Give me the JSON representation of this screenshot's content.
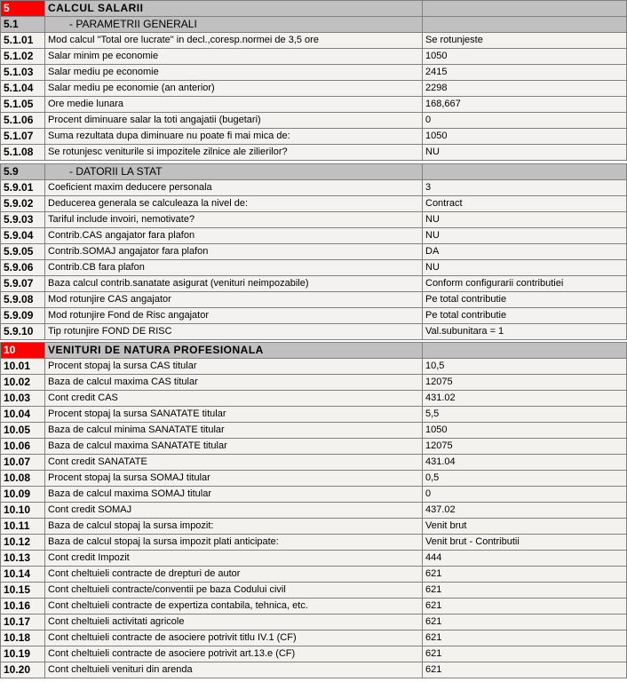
{
  "colors": {
    "section_code_bg": "#ff0000",
    "header_bg": "#c0c0c0",
    "cell_bg": "#f3f2ef",
    "grid": "#808080"
  },
  "groups": [
    {
      "rows": [
        {
          "type": "section",
          "code": "5",
          "label": "CALCUL SALARII",
          "value": ""
        },
        {
          "type": "subsection",
          "code": "5.1",
          "label": "- PARAMETRII GENERALI",
          "value": ""
        },
        {
          "code": "5.1.01",
          "label": "Mod calcul \"Total ore lucrate\" in decl.,coresp.normei de 3,5 ore",
          "value": "Se rotunjeste"
        },
        {
          "code": "5.1.02",
          "label": "Salar minim pe economie",
          "value": "1050"
        },
        {
          "code": "5.1.03",
          "label": "Salar mediu pe economie",
          "value": "2415"
        },
        {
          "code": "5.1.04",
          "label": "Salar mediu pe economie (an anterior)",
          "value": "2298"
        },
        {
          "code": "5.1.05",
          "label": "Ore medie lunara",
          "value": "168,667"
        },
        {
          "code": "5.1.06",
          "label": "Procent diminuare salar la toti angajatii (bugetari)",
          "value": "0"
        },
        {
          "code": "5.1.07",
          "label": "Suma rezultata dupa diminuare nu poate fi mai mica de:",
          "value": "1050"
        },
        {
          "code": "5.1.08",
          "label": "Se rotunjesc veniturile si impozitele zilnice ale zilierilor?",
          "value": "NU"
        }
      ]
    },
    {
      "rows": [
        {
          "type": "subsection",
          "code": "5.9",
          "label": "- DATORII LA STAT",
          "value": ""
        },
        {
          "code": "5.9.01",
          "label": "Coeficient maxim deducere personala",
          "value": "3"
        },
        {
          "code": "5.9.02",
          "label": "Deducerea generala se calculeaza la nivel de:",
          "value": "Contract"
        },
        {
          "code": "5.9.03",
          "label": "Tariful include invoiri, nemotivate?",
          "value": "NU"
        },
        {
          "code": "5.9.04",
          "label": "Contrib.CAS angajator fara plafon",
          "value": "NU"
        },
        {
          "code": "5.9.05",
          "label": "Contrib.SOMAJ angajator fara plafon",
          "value": "DA"
        },
        {
          "code": "5.9.06",
          "label": "Contrib.CB fara plafon",
          "value": "NU"
        },
        {
          "code": "5.9.07",
          "label": "Baza calcul contrib.sanatate asigurat (venituri neimpozabile)",
          "value": "Conform configurarii contributiei"
        },
        {
          "code": "5.9.08",
          "label": "Mod rotunjire CAS angajator",
          "value": "Pe total contributie"
        },
        {
          "code": "5.9.09",
          "label": "Mod rotunjire Fond de Risc angajator",
          "value": "Pe total contributie"
        },
        {
          "code": "5.9.10",
          "label": "Tip rotunjire FOND DE RISC",
          "value": "Val.subunitara = 1"
        }
      ]
    },
    {
      "rows": [
        {
          "type": "section",
          "code": "10",
          "label": "VENITURI DE NATURA PROFESIONALA",
          "value": ""
        },
        {
          "code": "10.01",
          "label": "Procent stopaj la sursa CAS titular",
          "value": "10,5"
        },
        {
          "code": "10.02",
          "label": "Baza de calcul maxima CAS titular",
          "value": "12075"
        },
        {
          "code": "10.03",
          "label": "Cont credit CAS",
          "value": "431.02"
        },
        {
          "code": "10.04",
          "label": "Procent stopaj la sursa SANATATE titular",
          "value": "5,5"
        },
        {
          "code": "10.05",
          "label": "Baza de calcul minima SANATATE titular",
          "value": "1050"
        },
        {
          "code": "10.06",
          "label": "Baza de calcul maxima SANATATE titular",
          "value": "12075"
        },
        {
          "code": "10.07",
          "label": "Cont credit SANATATE",
          "value": "431.04"
        },
        {
          "code": "10.08",
          "label": "Procent stopaj la sursa SOMAJ titular",
          "value": "0,5"
        },
        {
          "code": "10.09",
          "label": "Baza de calcul maxima SOMAJ titular",
          "value": "0"
        },
        {
          "code": "10.10",
          "label": "Cont credit SOMAJ",
          "value": "437.02"
        },
        {
          "code": "10.11",
          "label": "Baza de calcul stopaj la sursa impozit:",
          "value": "Venit brut"
        },
        {
          "code": "10.12",
          "label": "Baza de calcul stopaj la sursa impozit plati anticipate:",
          "value": "Venit brut - Contributii"
        },
        {
          "code": "10.13",
          "label": "Cont credit Impozit",
          "value": "444"
        },
        {
          "code": "10.14",
          "label": "Cont cheltuieli contracte de drepturi de autor",
          "value": "621"
        },
        {
          "code": "10.15",
          "label": "Cont cheltuieli contracte/conventii pe baza Codului civil",
          "value": "621"
        },
        {
          "code": "10.16",
          "label": "Cont cheltuieli contracte de expertiza contabila, tehnica, etc.",
          "value": "621"
        },
        {
          "code": "10.17",
          "label": "Cont cheltuieli activitati agricole",
          "value": "621"
        },
        {
          "code": "10.18",
          "label": "Cont cheltuieli contracte de asociere potrivit titlu IV.1 (CF)",
          "value": "621"
        },
        {
          "code": "10.19",
          "label": "Cont cheltuieli contracte de asociere potrivit art.13.e (CF)",
          "value": "621"
        },
        {
          "code": "10.20",
          "label": "Cont cheltuieli venituri din arenda",
          "value": "621"
        }
      ]
    }
  ]
}
